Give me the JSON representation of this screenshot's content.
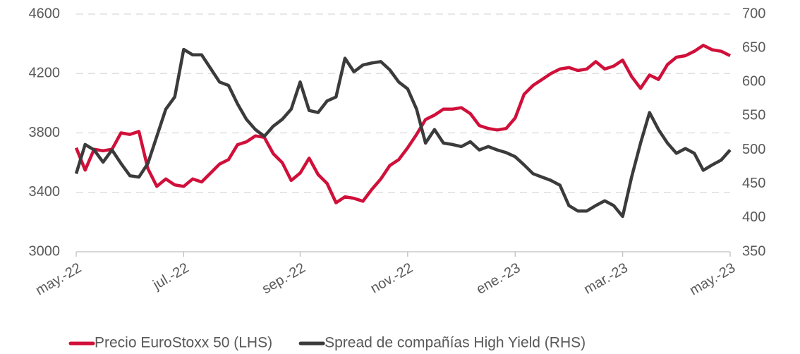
{
  "chart_data": {
    "type": "line",
    "categories": [
      "may.-22",
      null,
      null,
      null,
      null,
      null,
      null,
      null,
      null,
      null,
      null,
      null,
      "jul.-22",
      null,
      null,
      null,
      null,
      null,
      null,
      null,
      null,
      null,
      null,
      null,
      null,
      "sep.-22",
      null,
      null,
      null,
      null,
      null,
      null,
      null,
      null,
      null,
      null,
      null,
      "nov.-22",
      null,
      null,
      null,
      null,
      null,
      null,
      null,
      null,
      null,
      null,
      null,
      "ene.-23",
      null,
      null,
      null,
      null,
      null,
      null,
      null,
      null,
      null,
      null,
      null,
      "mar.-23",
      null,
      null,
      null,
      null,
      null,
      null,
      null,
      null,
      null,
      null,
      null,
      "may.-23"
    ],
    "series": [
      {
        "name": "Precio EuroStoxx 50 (LHS)",
        "color": "#d0103a",
        "axis": "y",
        "values": [
          3700,
          3550,
          3690,
          3680,
          3690,
          3800,
          3790,
          3810,
          3560,
          3440,
          3490,
          3450,
          3440,
          3490,
          3470,
          3530,
          3590,
          3620,
          3720,
          3740,
          3780,
          3770,
          3660,
          3600,
          3480,
          3530,
          3630,
          3520,
          3460,
          3330,
          3370,
          3360,
          3340,
          3420,
          3490,
          3580,
          3620,
          3700,
          3790,
          3890,
          3920,
          3960,
          3960,
          3970,
          3930,
          3850,
          3830,
          3820,
          3830,
          3900,
          4060,
          4120,
          4160,
          4200,
          4230,
          4240,
          4220,
          4230,
          4280,
          4230,
          4250,
          4290,
          4180,
          4100,
          4190,
          4160,
          4260,
          4310,
          4320,
          4350,
          4390,
          4360,
          4350,
          4320
        ]
      },
      {
        "name": "Spread de compañías High Yield (RHS)",
        "color": "#3b3b3b",
        "axis": "y2",
        "values": [
          465,
          508,
          500,
          482,
          500,
          480,
          462,
          460,
          480,
          520,
          560,
          578,
          648,
          640,
          640,
          620,
          600,
          595,
          568,
          545,
          530,
          520,
          535,
          545,
          560,
          600,
          558,
          555,
          572,
          578,
          635,
          615,
          625,
          628,
          630,
          618,
          600,
          590,
          560,
          510,
          530,
          510,
          508,
          505,
          512,
          500,
          505,
          500,
          496,
          490,
          478,
          465,
          460,
          455,
          448,
          418,
          410,
          410,
          418,
          425,
          418,
          402,
          460,
          510,
          555,
          530,
          510,
          495,
          502,
          495,
          470,
          478,
          485,
          500
        ]
      }
    ],
    "ylim": [
      3000,
      4600
    ],
    "yticks": [
      3000,
      3400,
      3800,
      4200,
      4600
    ],
    "y2lim": [
      350,
      700
    ],
    "y2ticks": [
      350,
      400,
      450,
      500,
      550,
      600,
      650,
      700
    ],
    "grid": true,
    "legend": "bottom"
  }
}
